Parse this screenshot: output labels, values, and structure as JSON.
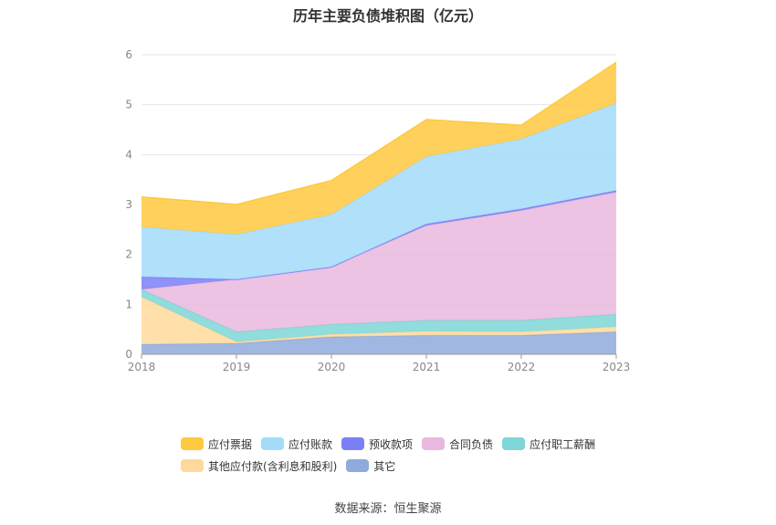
{
  "chart_data": {
    "type": "area",
    "title": "历年主要负债堆积图（亿元）",
    "stacked": true,
    "categories": [
      "2018",
      "2019",
      "2020",
      "2021",
      "2022",
      "2023"
    ],
    "ylim": [
      0,
      6
    ],
    "yticks": [
      "0",
      "1",
      "2",
      "3",
      "4",
      "5",
      "6"
    ],
    "grid": true,
    "legend_position": "bottom",
    "series": [
      {
        "name": "其它",
        "color": "#8faadc",
        "values": [
          0.2,
          0.22,
          0.35,
          0.38,
          0.38,
          0.45
        ]
      },
      {
        "name": "其他应付款(含利息和股利)",
        "color": "#ffd99b",
        "values": [
          0.95,
          0.03,
          0.05,
          0.08,
          0.07,
          0.1
        ]
      },
      {
        "name": "应付职工薪酬",
        "color": "#7ed6d6",
        "values": [
          0.15,
          0.2,
          0.2,
          0.22,
          0.23,
          0.25
        ]
      },
      {
        "name": "合同负债",
        "color": "#e9b8de",
        "values": [
          0.0,
          1.05,
          1.15,
          1.9,
          2.2,
          2.45
        ]
      },
      {
        "name": "预收款项",
        "color": "#7b7ff5",
        "values": [
          0.25,
          0.0,
          0.0,
          0.03,
          0.03,
          0.03
        ]
      },
      {
        "name": "应付账款",
        "color": "#a3dcf9",
        "values": [
          1.0,
          0.9,
          1.05,
          1.35,
          1.4,
          1.75
        ]
      },
      {
        "name": "应付票据",
        "color": "#ffc940",
        "values": [
          0.6,
          0.6,
          0.68,
          0.74,
          0.28,
          0.82
        ]
      }
    ]
  },
  "legend": {
    "row1": [
      "应付票据",
      "应付账款",
      "预收款项",
      "合同负债",
      "应付职工薪酬"
    ],
    "row2": [
      "其他应付款(含利息和股利)",
      "其它"
    ]
  },
  "source": "数据来源：恒生聚源"
}
